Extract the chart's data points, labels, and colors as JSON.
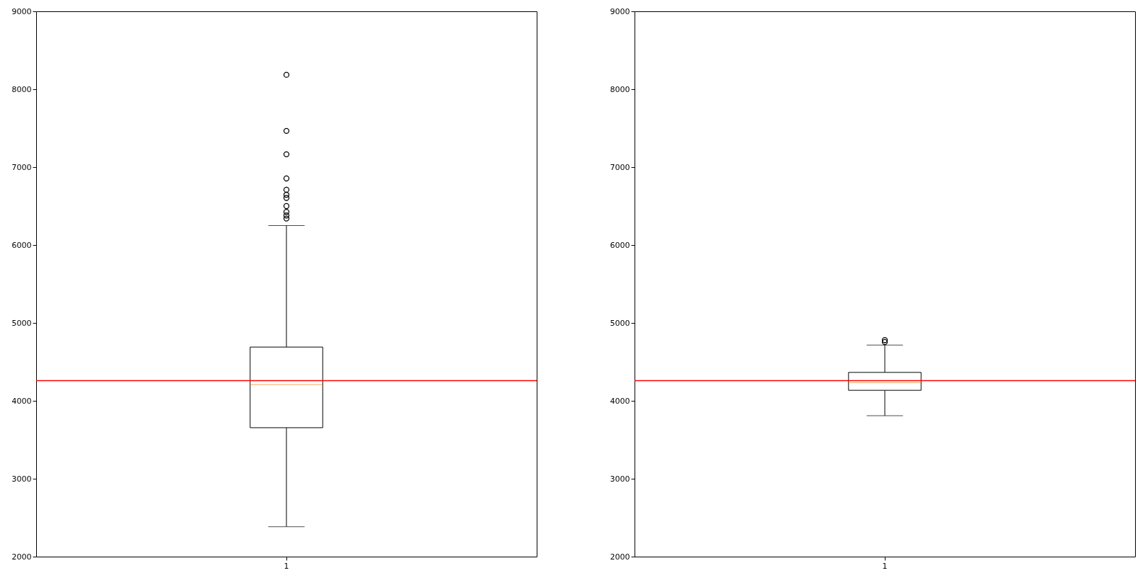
{
  "chart_data": [
    {
      "type": "box",
      "categories": [
        "1"
      ],
      "boxes": [
        {
          "low": 2385,
          "q1": 3655,
          "median": 4210,
          "q3": 4690,
          "high": 6250,
          "outliers": [
            6340,
            6380,
            6425,
            6500,
            6605,
            6645,
            6710,
            6855,
            7165,
            7465,
            8185
          ]
        }
      ],
      "ylim": [
        2000,
        9000
      ],
      "yticks": [
        2000,
        3000,
        4000,
        5000,
        6000,
        7000,
        8000,
        9000
      ],
      "ref_lines": [
        {
          "axis": "y",
          "value": 4260,
          "color": "#ff0000"
        }
      ]
    },
    {
      "type": "box",
      "categories": [
        "1"
      ],
      "boxes": [
        {
          "low": 3810,
          "q1": 4135,
          "median": 4235,
          "q3": 4365,
          "high": 4715,
          "outliers": [
            4755,
            4780
          ]
        }
      ],
      "ylim": [
        2000,
        9000
      ],
      "yticks": [
        2000,
        3000,
        4000,
        5000,
        6000,
        7000,
        8000,
        9000
      ],
      "ref_lines": [
        {
          "axis": "y",
          "value": 4260,
          "color": "#ff0000"
        }
      ]
    }
  ]
}
